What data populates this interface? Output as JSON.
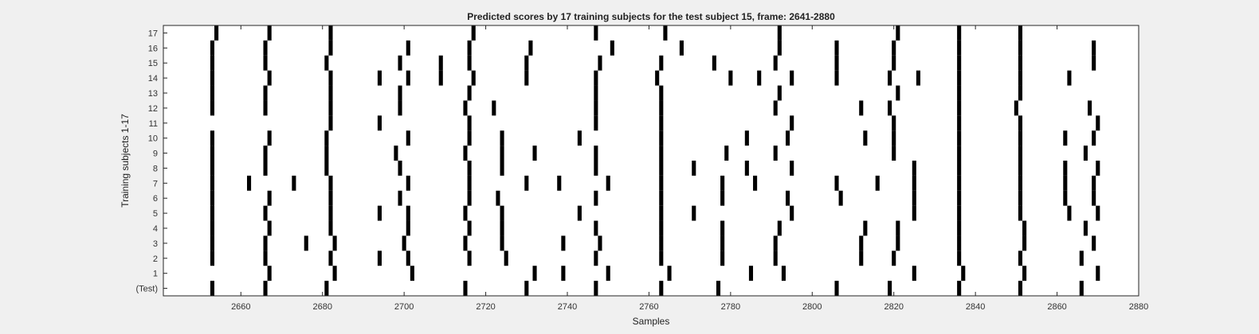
{
  "chart_data": {
    "type": "heatmap",
    "title": "Predicted scores by 17 training subjects for the test subject 15, frame: 2641-2880",
    "xlabel": "Samples",
    "ylabel": "Training subjects 1-17",
    "xlim": [
      2641,
      2880
    ],
    "xticks": [
      2660,
      2680,
      2700,
      2720,
      2740,
      2760,
      2780,
      2800,
      2820,
      2840,
      2860,
      2880
    ],
    "ylabels": [
      "(Test)",
      "1",
      "2",
      "3",
      "4",
      "5",
      "6",
      "7",
      "8",
      "9",
      "10",
      "11",
      "12",
      "13",
      "14",
      "15",
      "16",
      "17"
    ],
    "grid": false,
    "colors": {
      "mark": "#000000",
      "background": "#ffffff",
      "figure": "#f0f0f0"
    },
    "rows": [
      {
        "label": "(Test)",
        "samples": [
          2653,
          2666,
          2681,
          2715,
          2730,
          2747,
          2763,
          2777,
          2806,
          2819,
          2836,
          2851,
          2866
        ]
      },
      {
        "label": "1",
        "samples": [
          2667,
          2683,
          2702,
          2732,
          2739,
          2750,
          2765,
          2785,
          2793,
          2825,
          2837,
          2852,
          2870
        ]
      },
      {
        "label": "2",
        "samples": [
          2653,
          2666,
          2682,
          2694,
          2701,
          2716,
          2725,
          2747,
          2763,
          2778,
          2791,
          2812,
          2820,
          2836,
          2851,
          2866
        ]
      },
      {
        "label": "3",
        "samples": [
          2653,
          2666,
          2676,
          2683,
          2700,
          2715,
          2724,
          2739,
          2748,
          2763,
          2778,
          2791,
          2812,
          2821,
          2836,
          2852,
          2869
        ]
      },
      {
        "label": "4",
        "samples": [
          2653,
          2667,
          2682,
          2701,
          2716,
          2724,
          2747,
          2763,
          2778,
          2792,
          2813,
          2821,
          2836,
          2852,
          2867
        ]
      },
      {
        "label": "5",
        "samples": [
          2653,
          2666,
          2682,
          2694,
          2701,
          2715,
          2724,
          2743,
          2763,
          2771,
          2795,
          2825,
          2836,
          2851,
          2863,
          2870
        ]
      },
      {
        "label": "6",
        "samples": [
          2653,
          2667,
          2682,
          2699,
          2716,
          2723,
          2747,
          2763,
          2778,
          2794,
          2807,
          2825,
          2836,
          2851,
          2862,
          2869
        ]
      },
      {
        "label": "7",
        "samples": [
          2653,
          2662,
          2673,
          2682,
          2701,
          2716,
          2730,
          2738,
          2750,
          2763,
          2778,
          2786,
          2806,
          2816,
          2825,
          2836,
          2851,
          2862,
          2869
        ]
      },
      {
        "label": "8",
        "samples": [
          2653,
          2666,
          2681,
          2699,
          2716,
          2724,
          2747,
          2763,
          2771,
          2784,
          2795,
          2825,
          2836,
          2851,
          2862,
          2870
        ]
      },
      {
        "label": "9",
        "samples": [
          2653,
          2666,
          2681,
          2698,
          2715,
          2724,
          2732,
          2747,
          2763,
          2779,
          2791,
          2820,
          2836,
          2851,
          2867
        ]
      },
      {
        "label": "10",
        "samples": [
          2653,
          2667,
          2681,
          2701,
          2716,
          2724,
          2743,
          2763,
          2784,
          2794,
          2813,
          2820,
          2836,
          2851,
          2862,
          2869
        ]
      },
      {
        "label": "11",
        "samples": [
          2682,
          2694,
          2716,
          2747,
          2763,
          2795,
          2820,
          2836,
          2851,
          2870
        ]
      },
      {
        "label": "12",
        "samples": [
          2653,
          2666,
          2682,
          2699,
          2715,
          2722,
          2747,
          2763,
          2791,
          2812,
          2819,
          2836,
          2850,
          2868
        ]
      },
      {
        "label": "13",
        "samples": [
          2653,
          2666,
          2682,
          2699,
          2716,
          2747,
          2763,
          2792,
          2821,
          2836,
          2851
        ]
      },
      {
        "label": "14",
        "samples": [
          2653,
          2667,
          2682,
          2694,
          2701,
          2709,
          2717,
          2730,
          2747,
          2762,
          2780,
          2787,
          2795,
          2806,
          2819,
          2826,
          2836,
          2851,
          2863
        ]
      },
      {
        "label": "15",
        "samples": [
          2653,
          2666,
          2681,
          2699,
          2709,
          2716,
          2730,
          2748,
          2763,
          2776,
          2791,
          2806,
          2820,
          2836,
          2851,
          2869
        ]
      },
      {
        "label": "16",
        "samples": [
          2653,
          2666,
          2682,
          2701,
          2716,
          2731,
          2751,
          2768,
          2792,
          2806,
          2820,
          2836,
          2851,
          2869
        ]
      },
      {
        "label": "17",
        "samples": [
          2654,
          2667,
          2682,
          2717,
          2747,
          2764,
          2792,
          2821,
          2836,
          2851
        ]
      }
    ]
  }
}
